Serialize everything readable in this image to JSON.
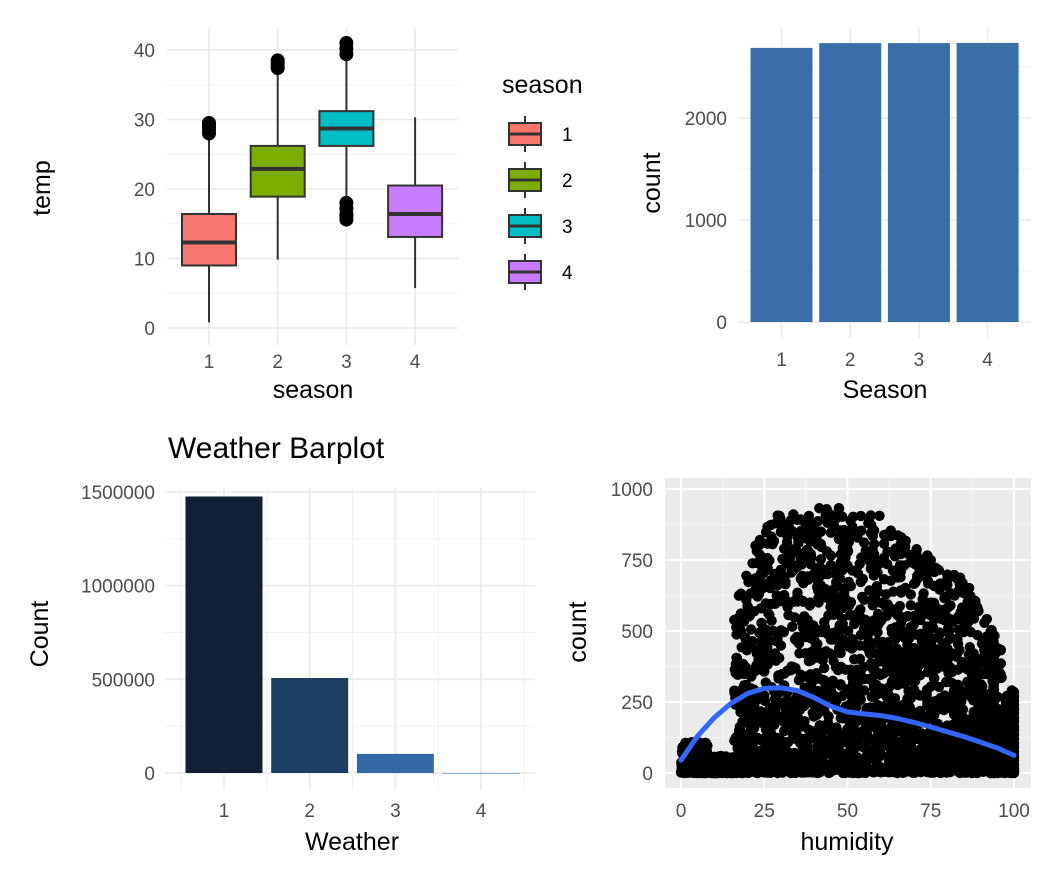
{
  "colors": {
    "season": [
      "#F8766D",
      "#7CAE00",
      "#00BFC4",
      "#C77CFF"
    ],
    "season_bar": "#3A6EA8",
    "weather": [
      "#112034",
      "#1E3E64",
      "#3569A6",
      "#3F86D5"
    ],
    "smooth": "#3366FF",
    "panel_bg_grey": "#EBEBEB"
  },
  "chart_data": [
    {
      "type": "box",
      "title": "",
      "xlabel": "season",
      "ylabel": "temp",
      "categories": [
        "1",
        "2",
        "3",
        "4"
      ],
      "ylim": [
        0,
        41
      ],
      "y_ticks": [
        "0",
        "10",
        "20",
        "30",
        "40"
      ],
      "boxes": [
        {
          "name": "1",
          "min": 0.82,
          "q1": 9.0,
          "median": 12.3,
          "q3": 16.4,
          "max": 27.8,
          "outliers": [
            28.0,
            28.5,
            29.0,
            29.3,
            29.5
          ]
        },
        {
          "name": "2",
          "min": 9.84,
          "q1": 18.9,
          "median": 22.9,
          "q3": 26.2,
          "max": 37.0,
          "outliers": [
            37.4,
            37.7,
            38.1,
            38.5
          ]
        },
        {
          "name": "3",
          "min": 18.9,
          "q1": 26.2,
          "median": 28.7,
          "q3": 31.2,
          "max": 38.9,
          "outliers": [
            15.6,
            16.1,
            16.4,
            17.2,
            18.0,
            39.4,
            40.2,
            41.0
          ]
        },
        {
          "name": "4",
          "min": 5.74,
          "q1": 13.1,
          "median": 16.4,
          "q3": 20.5,
          "max": 30.3,
          "outliers": []
        }
      ],
      "legend": {
        "title": "season",
        "items": [
          "1",
          "2",
          "3",
          "4"
        ],
        "placement": "right"
      },
      "grid": true
    },
    {
      "type": "bar",
      "title": "",
      "xlabel": "Season",
      "ylabel": "count",
      "categories": [
        "1",
        "2",
        "3",
        "4"
      ],
      "values": [
        2686,
        2733,
        2733,
        2734
      ],
      "ylim": [
        0,
        2734
      ],
      "y_ticks": [
        "0",
        "1000",
        "2000"
      ],
      "grid": true
    },
    {
      "type": "bar",
      "title": "Weather Barplot",
      "xlabel": "Weather",
      "ylabel": "Count",
      "categories": [
        "1",
        "2",
        "3",
        "4"
      ],
      "values": [
        1476063,
        507160,
        102089,
        164
      ],
      "ylim": [
        0,
        1476063
      ],
      "y_ticks": [
        "0",
        "500000",
        "1000000",
        "1500000"
      ],
      "grid": true
    },
    {
      "type": "scatter",
      "title": "",
      "xlabel": "humidity",
      "ylabel": "count",
      "xlim": [
        0,
        100
      ],
      "ylim": [
        0,
        977
      ],
      "x_ticks": [
        "0",
        "25",
        "50",
        "75",
        "100"
      ],
      "y_ticks": [
        "0",
        "250",
        "500",
        "750",
        "1000"
      ],
      "smooth": {
        "x": [
          0,
          5,
          10,
          15,
          20,
          25,
          30,
          35,
          40,
          45,
          50,
          55,
          60,
          65,
          70,
          75,
          80,
          85,
          90,
          95,
          100
        ],
        "y": [
          45,
          130,
          195,
          245,
          280,
          298,
          300,
          290,
          265,
          235,
          215,
          208,
          202,
          192,
          178,
          162,
          145,
          128,
          108,
          88,
          62
        ]
      },
      "grid": true
    }
  ]
}
